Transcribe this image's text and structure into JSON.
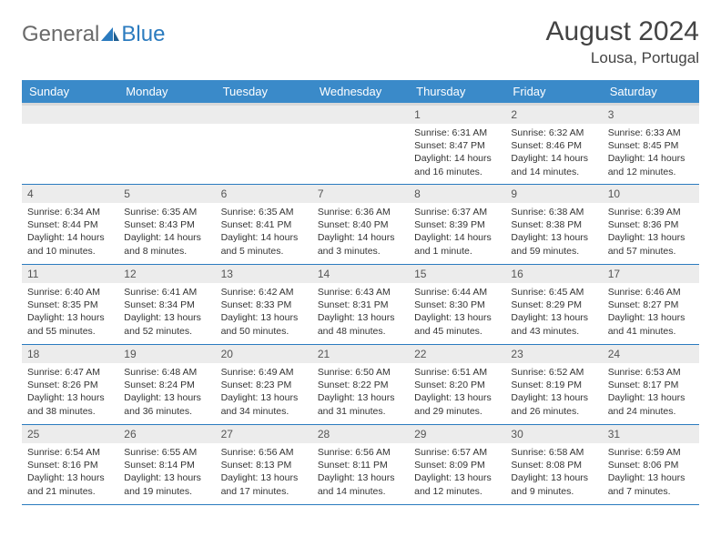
{
  "logo": {
    "part1": "General",
    "part2": "Blue"
  },
  "title": "August 2024",
  "location": "Lousa, Portugal",
  "colors": {
    "header_bg": "#3a8ac9",
    "header_text": "#ffffff",
    "daynum_bg": "#ececec",
    "border": "#2b7bbf",
    "logo_gray": "#6a6a6a",
    "logo_blue": "#2b7bbf"
  },
  "weekdays": [
    "Sunday",
    "Monday",
    "Tuesday",
    "Wednesday",
    "Thursday",
    "Friday",
    "Saturday"
  ],
  "weeks": [
    [
      null,
      null,
      null,
      null,
      {
        "n": "1",
        "sr": "6:31 AM",
        "ss": "8:47 PM",
        "dl": "14 hours and 16 minutes."
      },
      {
        "n": "2",
        "sr": "6:32 AM",
        "ss": "8:46 PM",
        "dl": "14 hours and 14 minutes."
      },
      {
        "n": "3",
        "sr": "6:33 AM",
        "ss": "8:45 PM",
        "dl": "14 hours and 12 minutes."
      }
    ],
    [
      {
        "n": "4",
        "sr": "6:34 AM",
        "ss": "8:44 PM",
        "dl": "14 hours and 10 minutes."
      },
      {
        "n": "5",
        "sr": "6:35 AM",
        "ss": "8:43 PM",
        "dl": "14 hours and 8 minutes."
      },
      {
        "n": "6",
        "sr": "6:35 AM",
        "ss": "8:41 PM",
        "dl": "14 hours and 5 minutes."
      },
      {
        "n": "7",
        "sr": "6:36 AM",
        "ss": "8:40 PM",
        "dl": "14 hours and 3 minutes."
      },
      {
        "n": "8",
        "sr": "6:37 AM",
        "ss": "8:39 PM",
        "dl": "14 hours and 1 minute."
      },
      {
        "n": "9",
        "sr": "6:38 AM",
        "ss": "8:38 PM",
        "dl": "13 hours and 59 minutes."
      },
      {
        "n": "10",
        "sr": "6:39 AM",
        "ss": "8:36 PM",
        "dl": "13 hours and 57 minutes."
      }
    ],
    [
      {
        "n": "11",
        "sr": "6:40 AM",
        "ss": "8:35 PM",
        "dl": "13 hours and 55 minutes."
      },
      {
        "n": "12",
        "sr": "6:41 AM",
        "ss": "8:34 PM",
        "dl": "13 hours and 52 minutes."
      },
      {
        "n": "13",
        "sr": "6:42 AM",
        "ss": "8:33 PM",
        "dl": "13 hours and 50 minutes."
      },
      {
        "n": "14",
        "sr": "6:43 AM",
        "ss": "8:31 PM",
        "dl": "13 hours and 48 minutes."
      },
      {
        "n": "15",
        "sr": "6:44 AM",
        "ss": "8:30 PM",
        "dl": "13 hours and 45 minutes."
      },
      {
        "n": "16",
        "sr": "6:45 AM",
        "ss": "8:29 PM",
        "dl": "13 hours and 43 minutes."
      },
      {
        "n": "17",
        "sr": "6:46 AM",
        "ss": "8:27 PM",
        "dl": "13 hours and 41 minutes."
      }
    ],
    [
      {
        "n": "18",
        "sr": "6:47 AM",
        "ss": "8:26 PM",
        "dl": "13 hours and 38 minutes."
      },
      {
        "n": "19",
        "sr": "6:48 AM",
        "ss": "8:24 PM",
        "dl": "13 hours and 36 minutes."
      },
      {
        "n": "20",
        "sr": "6:49 AM",
        "ss": "8:23 PM",
        "dl": "13 hours and 34 minutes."
      },
      {
        "n": "21",
        "sr": "6:50 AM",
        "ss": "8:22 PM",
        "dl": "13 hours and 31 minutes."
      },
      {
        "n": "22",
        "sr": "6:51 AM",
        "ss": "8:20 PM",
        "dl": "13 hours and 29 minutes."
      },
      {
        "n": "23",
        "sr": "6:52 AM",
        "ss": "8:19 PM",
        "dl": "13 hours and 26 minutes."
      },
      {
        "n": "24",
        "sr": "6:53 AM",
        "ss": "8:17 PM",
        "dl": "13 hours and 24 minutes."
      }
    ],
    [
      {
        "n": "25",
        "sr": "6:54 AM",
        "ss": "8:16 PM",
        "dl": "13 hours and 21 minutes."
      },
      {
        "n": "26",
        "sr": "6:55 AM",
        "ss": "8:14 PM",
        "dl": "13 hours and 19 minutes."
      },
      {
        "n": "27",
        "sr": "6:56 AM",
        "ss": "8:13 PM",
        "dl": "13 hours and 17 minutes."
      },
      {
        "n": "28",
        "sr": "6:56 AM",
        "ss": "8:11 PM",
        "dl": "13 hours and 14 minutes."
      },
      {
        "n": "29",
        "sr": "6:57 AM",
        "ss": "8:09 PM",
        "dl": "13 hours and 12 minutes."
      },
      {
        "n": "30",
        "sr": "6:58 AM",
        "ss": "8:08 PM",
        "dl": "13 hours and 9 minutes."
      },
      {
        "n": "31",
        "sr": "6:59 AM",
        "ss": "8:06 PM",
        "dl": "13 hours and 7 minutes."
      }
    ]
  ],
  "labels": {
    "sunrise": "Sunrise: ",
    "sunset": "Sunset: ",
    "daylight": "Daylight: "
  }
}
